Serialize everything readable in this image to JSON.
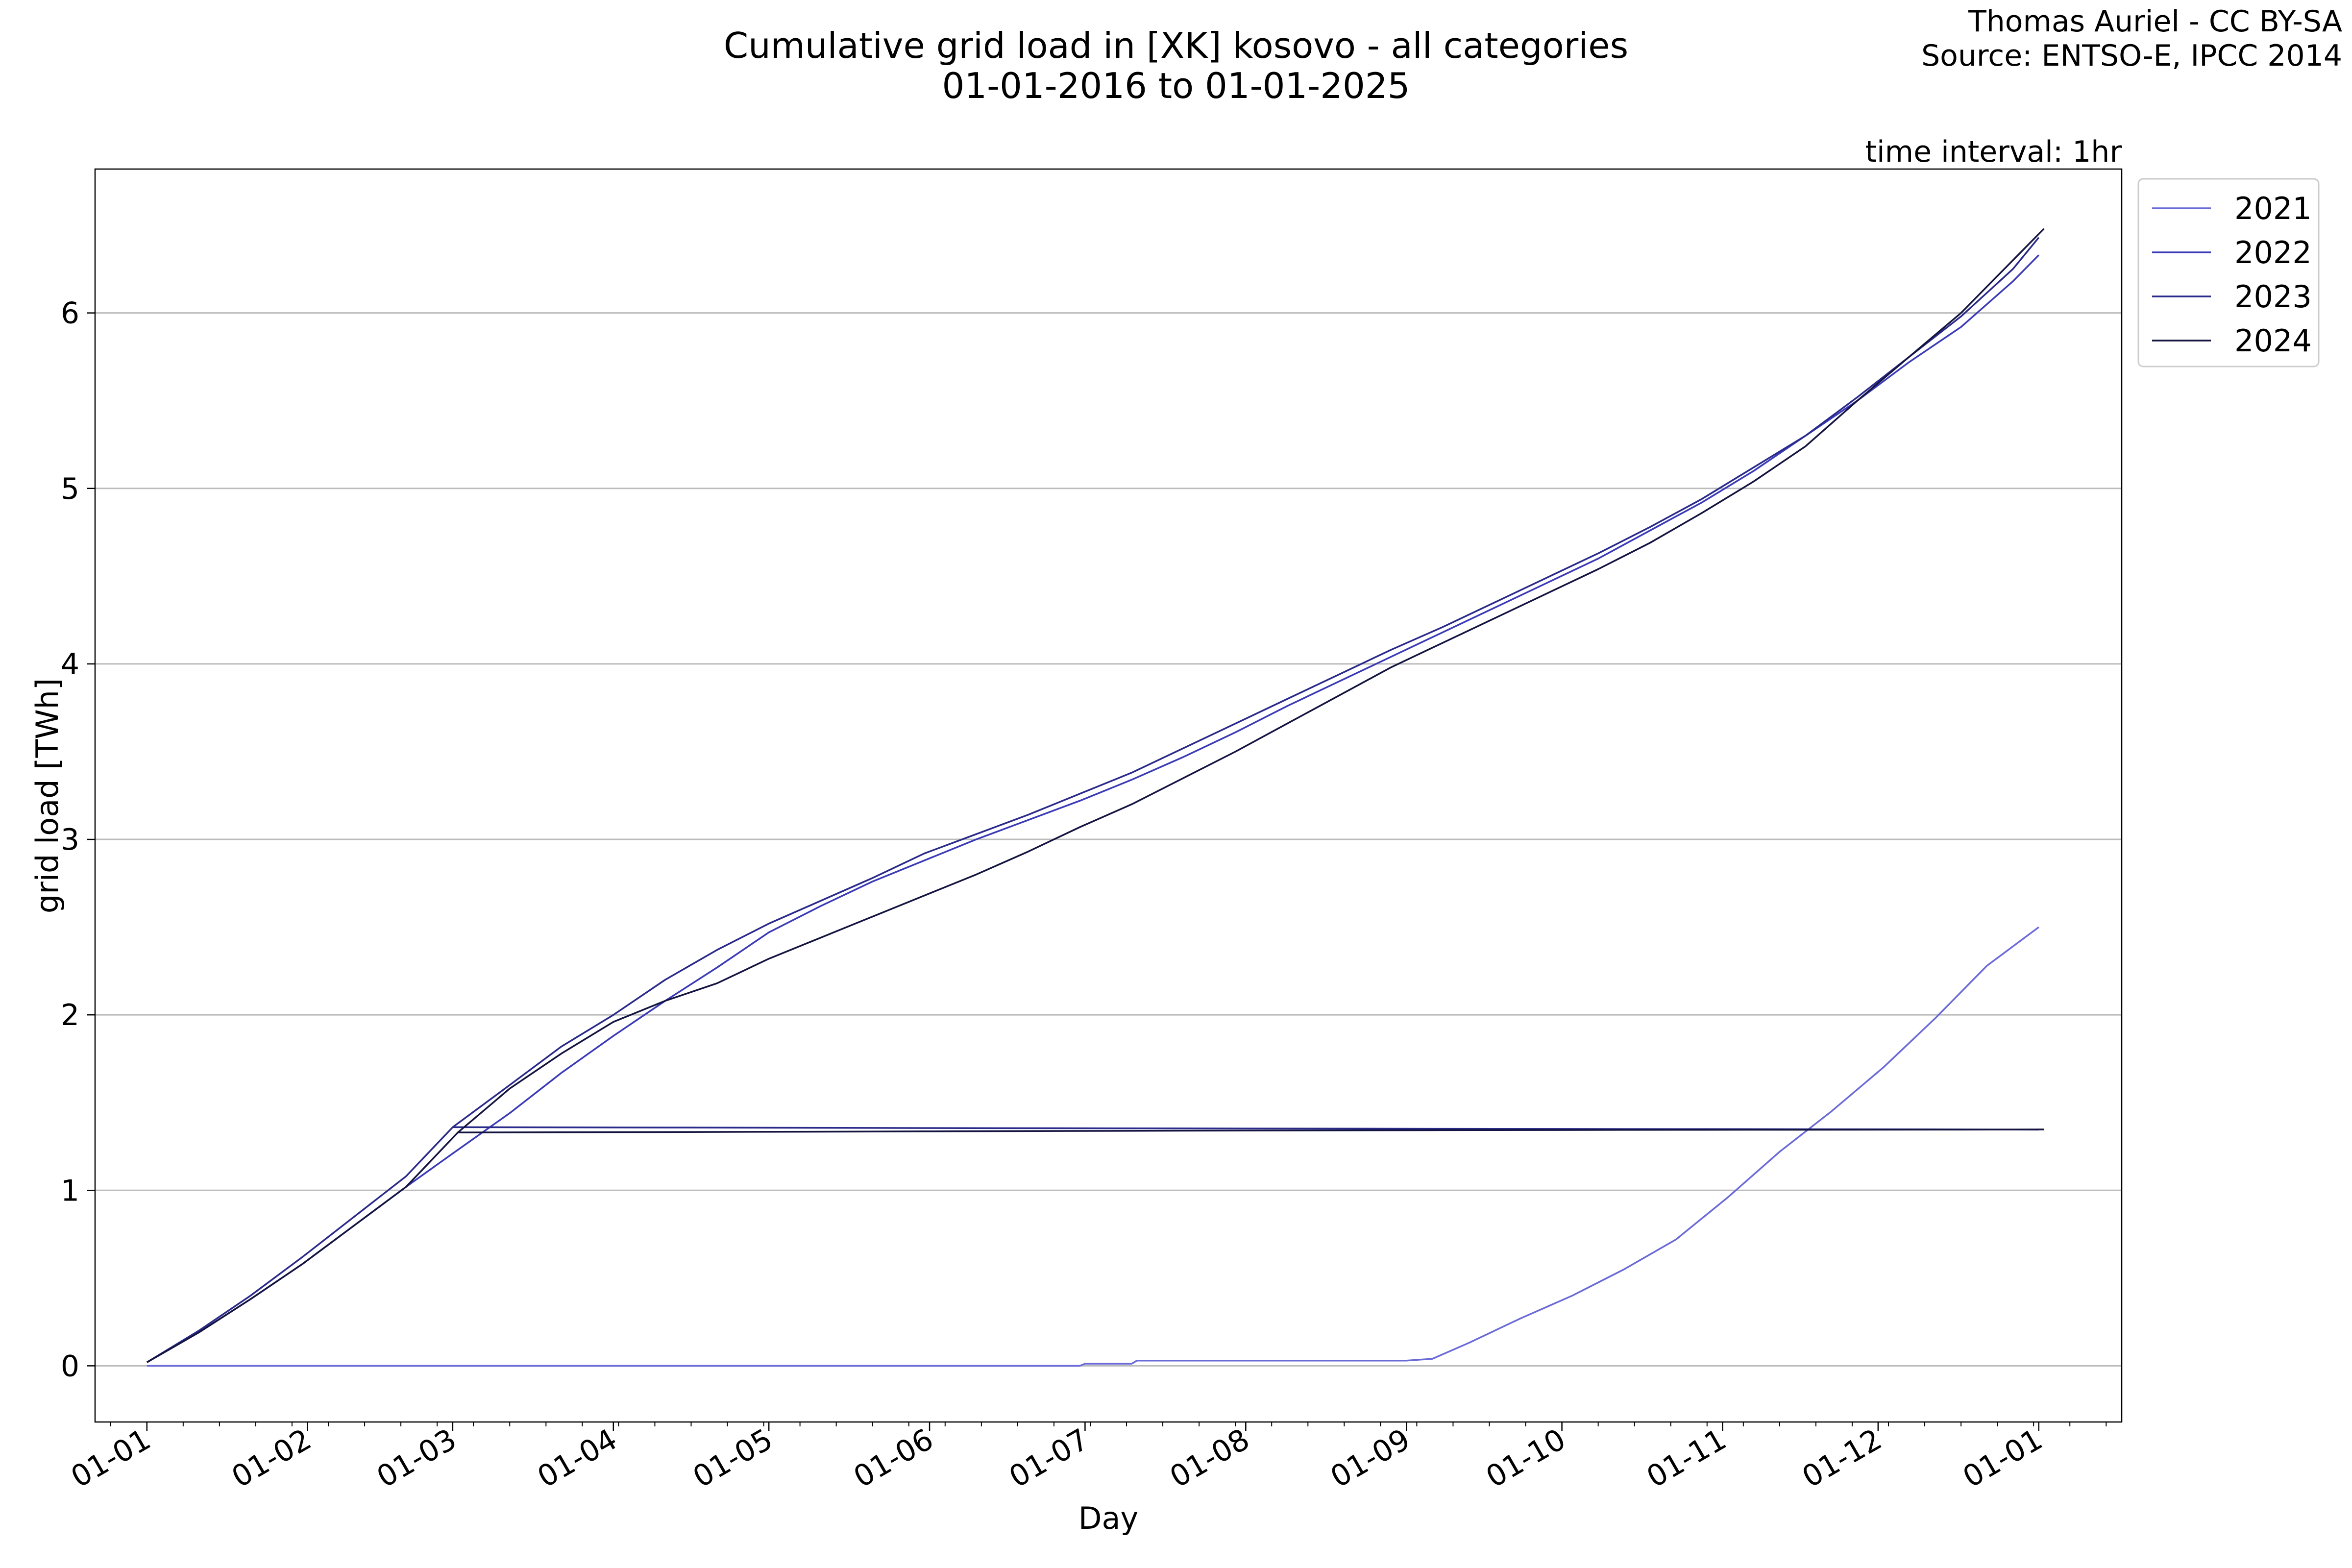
{
  "chart_data": {
    "type": "line",
    "title": "Cumulative grid load in [XK] kosovo - all categories",
    "subtitle": "01-01-2016 to 01-01-2025",
    "credits": [
      "Thomas Auriel - CC BY-SA",
      "Source: ENTSO-E, IPCC 2014"
    ],
    "annotation": "time interval: 1hr",
    "xlabel": "Day",
    "ylabel": "grid load [TWh]",
    "x_tick_labels": [
      "01-01",
      "01-02",
      "01-03",
      "01-04",
      "01-05",
      "01-06",
      "01-07",
      "01-08",
      "01-09",
      "01-10",
      "01-11",
      "01-12",
      "01-01"
    ],
    "y_ticks": [
      0,
      1,
      2,
      3,
      4,
      5,
      6
    ],
    "xlim": [
      -10,
      381
    ],
    "ylim": [
      -0.32,
      6.82
    ],
    "grid": "horizontal",
    "legend_position": "outside-top-right",
    "series": [
      {
        "name": "2021",
        "color": "#6a6ad8",
        "x": [
          0,
          180,
          181,
          190,
          191,
          243,
          248,
          255,
          265,
          275,
          285,
          295,
          305,
          315,
          325,
          335,
          345,
          355,
          365
        ],
        "y": [
          0,
          0,
          0.012,
          0.012,
          0.03,
          0.03,
          0.04,
          0.13,
          0.27,
          0.4,
          0.55,
          0.72,
          0.96,
          1.22,
          1.45,
          1.7,
          1.98,
          2.28,
          2.5
        ]
      },
      {
        "name": "2022",
        "color": "#3b3bb8",
        "x": [
          0,
          10,
          20,
          30,
          40,
          50,
          59,
          70,
          80,
          90,
          100,
          110,
          120,
          130,
          140,
          150,
          160,
          170,
          180,
          190,
          200,
          210,
          220,
          230,
          240,
          250,
          260,
          270,
          280,
          290,
          300,
          310,
          320,
          330,
          340,
          350,
          360,
          365
        ],
        "y": [
          0.02,
          0.19,
          0.38,
          0.58,
          0.8,
          1.02,
          1.21,
          1.44,
          1.67,
          1.88,
          2.08,
          2.27,
          2.47,
          2.62,
          2.76,
          2.88,
          3.0,
          3.11,
          3.22,
          3.34,
          3.47,
          3.61,
          3.76,
          3.9,
          4.04,
          4.18,
          4.32,
          4.46,
          4.6,
          4.76,
          4.92,
          5.1,
          5.3,
          5.5,
          5.72,
          5.92,
          6.18,
          6.33
        ]
      },
      {
        "name": "2023",
        "color": "#2a2a8a",
        "x": [
          0,
          10,
          20,
          30,
          40,
          50,
          59,
          60,
          100,
          150,
          200,
          250,
          300,
          350,
          365
        ],
        "y": [
          0.02,
          0.2,
          0.4,
          0.62,
          0.85,
          1.08,
          1.36,
          1.36,
          1.358,
          1.355,
          1.353,
          1.351,
          1.349,
          1.347,
          1.346
        ]
      },
      {
        "name": "2024",
        "color": "#141440",
        "x": [
          0,
          10,
          20,
          30,
          40,
          50,
          60,
          61,
          100,
          150,
          200,
          250,
          300,
          350,
          366
        ],
        "y": [
          0.02,
          0.19,
          0.38,
          0.58,
          0.8,
          1.02,
          1.33,
          1.33,
          1.332,
          1.336,
          1.34,
          1.343,
          1.345,
          1.346,
          1.347
        ]
      },
      {
        "name": "2023",
        "color": "#2a2a8a",
        "x": [
          59,
          70,
          80,
          90,
          100,
          110,
          120,
          130,
          140,
          150,
          160,
          170,
          180,
          190,
          200,
          210,
          220,
          230,
          240,
          250,
          260,
          270,
          280,
          290,
          300,
          310,
          320,
          330,
          340,
          350,
          360,
          365
        ],
        "y": [
          1.36,
          1.6,
          1.82,
          2.0,
          2.2,
          2.37,
          2.52,
          2.65,
          2.78,
          2.92,
          3.03,
          3.14,
          3.26,
          3.38,
          3.52,
          3.66,
          3.8,
          3.94,
          4.08,
          4.21,
          4.35,
          4.49,
          4.63,
          4.78,
          4.94,
          5.12,
          5.3,
          5.52,
          5.75,
          5.98,
          6.25,
          6.43
        ]
      },
      {
        "name": "2024",
        "color": "#141440",
        "x": [
          60,
          70,
          80,
          90,
          100,
          110,
          120,
          130,
          140,
          150,
          160,
          170,
          180,
          190,
          200,
          210,
          220,
          230,
          240,
          250,
          260,
          270,
          280,
          290,
          300,
          310,
          320,
          330,
          340,
          350,
          360,
          366
        ],
        "y": [
          1.33,
          1.58,
          1.78,
          1.96,
          2.08,
          2.18,
          2.32,
          2.44,
          2.56,
          2.68,
          2.8,
          2.93,
          3.07,
          3.2,
          3.35,
          3.5,
          3.66,
          3.82,
          3.98,
          4.12,
          4.26,
          4.4,
          4.54,
          4.69,
          4.86,
          5.04,
          5.24,
          5.5,
          5.75,
          6.0,
          6.3,
          6.48
        ]
      }
    ]
  }
}
